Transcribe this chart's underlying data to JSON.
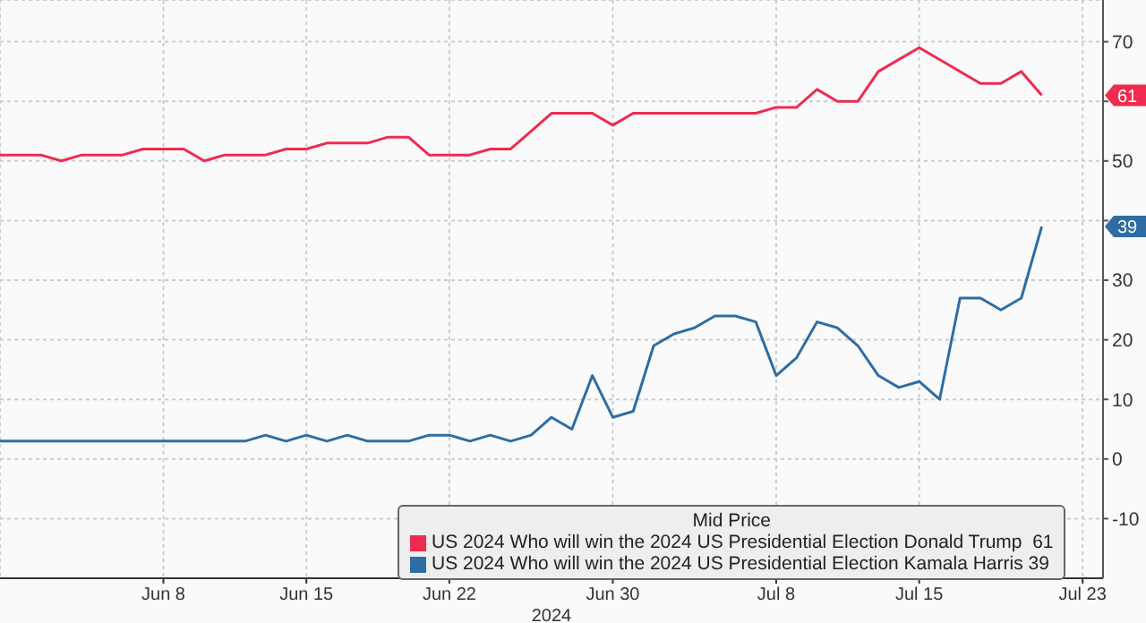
{
  "chart_data": {
    "type": "line",
    "xlabel": "2024",
    "legend_title": "Mid Price",
    "legend": "bottom right",
    "grid": true,
    "marker": "none",
    "line_style": "solid",
    "xlim": [
      "2024-05-31",
      "2024-07-24"
    ],
    "xticks": [
      {
        "value": "2024-06-08",
        "label": "Jun 8"
      },
      {
        "value": "2024-06-15",
        "label": "Jun 15"
      },
      {
        "value": "2024-06-22",
        "label": "Jun 22"
      },
      {
        "value": "2024-06-30",
        "label": "Jun 30"
      },
      {
        "value": "2024-07-08",
        "label": "Jul 8"
      },
      {
        "value": "2024-07-15",
        "label": "Jul 15"
      },
      {
        "value": "2024-07-23",
        "label": "Jul 23"
      }
    ],
    "ylim": [
      -20,
      77
    ],
    "yticks": [
      -10,
      0,
      10,
      20,
      30,
      {
        "value": 40,
        "label": null
      },
      50,
      {
        "value": 60,
        "label": null
      },
      70
    ],
    "series": [
      {
        "name": "US 2024 Who will win the 2024 US Presidential Election Donald Trump  61",
        "color": "#ef2b4f",
        "x": [
          "2024-05-31",
          "2024-06-02",
          "2024-06-03",
          "2024-06-04",
          "2024-06-06",
          "2024-06-07",
          "2024-06-09",
          "2024-06-10",
          "2024-06-11",
          "2024-06-13",
          "2024-06-14",
          "2024-06-15",
          "2024-06-16",
          "2024-06-18",
          "2024-06-19",
          "2024-06-20",
          "2024-06-21",
          "2024-06-23",
          "2024-06-24",
          "2024-06-25",
          "2024-06-26",
          "2024-06-27",
          "2024-06-29",
          "2024-06-30",
          "2024-07-01",
          "2024-07-07",
          "2024-07-08",
          "2024-07-09",
          "2024-07-10",
          "2024-07-11",
          "2024-07-12",
          "2024-07-13",
          "2024-07-15",
          "2024-07-18",
          "2024-07-19",
          "2024-07-20",
          "2024-07-21"
        ],
        "values": [
          51,
          51,
          50,
          51,
          51,
          52,
          52,
          50,
          51,
          51,
          52,
          52,
          53,
          53,
          54,
          54,
          51,
          51,
          52,
          52,
          55,
          58,
          58,
          56,
          58,
          58,
          59,
          59,
          62,
          60,
          60,
          65,
          69,
          63,
          63,
          65,
          61
        ]
      },
      {
        "name": "US 2024 Who will win the 2024 US Presidential Election Kamala Harris 39",
        "color": "#2e6da4",
        "x": [
          "2024-05-31",
          "2024-06-12",
          "2024-06-13",
          "2024-06-14",
          "2024-06-15",
          "2024-06-16",
          "2024-06-17",
          "2024-06-18",
          "2024-06-20",
          "2024-06-21",
          "2024-06-22",
          "2024-06-23",
          "2024-06-24",
          "2024-06-25",
          "2024-06-26",
          "2024-06-27",
          "2024-06-28",
          "2024-06-29",
          "2024-06-30",
          "2024-07-01",
          "2024-07-02",
          "2024-07-03",
          "2024-07-04",
          "2024-07-05",
          "2024-07-06",
          "2024-07-07",
          "2024-07-08",
          "2024-07-09",
          "2024-07-10",
          "2024-07-11",
          "2024-07-12",
          "2024-07-13",
          "2024-07-14",
          "2024-07-15",
          "2024-07-16",
          "2024-07-17",
          "2024-07-18",
          "2024-07-19",
          "2024-07-20",
          "2024-07-21"
        ],
        "values": [
          3,
          3,
          4,
          3,
          4,
          3,
          4,
          3,
          3,
          4,
          4,
          3,
          4,
          3,
          4,
          7,
          5,
          14,
          7,
          8,
          19,
          21,
          22,
          24,
          24,
          23,
          14,
          17,
          23,
          22,
          19,
          14,
          12,
          13,
          10,
          27,
          27,
          25,
          27,
          39
        ]
      }
    ],
    "annotations": [
      "61",
      "39"
    ]
  }
}
